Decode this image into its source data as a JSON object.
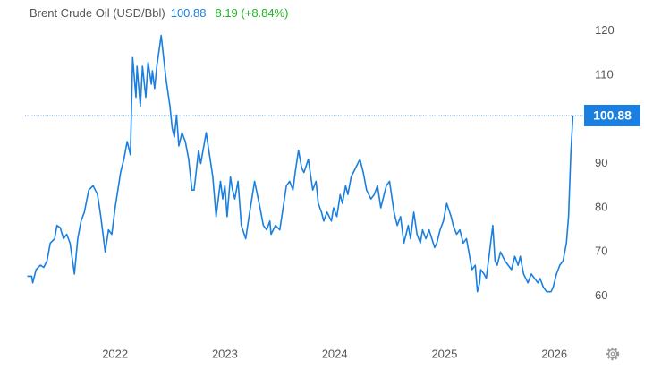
{
  "chart_data": {
    "type": "line",
    "title": "Brent Crude Oil (USD/Bbl)",
    "last_price": 100.88,
    "change": "8.19 (+8.84%)",
    "x": [
      2021.2,
      2021.24,
      2021.25,
      2021.28,
      2021.32,
      2021.35,
      2021.38,
      2021.41,
      2021.45,
      2021.47,
      2021.5,
      2021.53,
      2021.56,
      2021.59,
      2021.63,
      2021.66,
      2021.69,
      2021.72,
      2021.76,
      2021.8,
      2021.84,
      2021.87,
      2021.91,
      2021.94,
      2021.97,
      2022.0,
      2022.05,
      2022.08,
      2022.11,
      2022.14,
      2022.16,
      2022.19,
      2022.2,
      2022.23,
      2022.25,
      2022.28,
      2022.3,
      2022.33,
      2022.34,
      2022.36,
      2022.38,
      2022.42,
      2022.46,
      2022.47,
      2022.5,
      2022.52,
      2022.54,
      2022.56,
      2022.58,
      2022.61,
      2022.64,
      2022.67,
      2022.7,
      2022.72,
      2022.76,
      2022.78,
      2022.83,
      2022.86,
      2022.89,
      2022.92,
      2022.96,
      2022.98,
      2023.0,
      2023.02,
      2023.05,
      2023.07,
      2023.09,
      2023.12,
      2023.15,
      2023.19,
      2023.22,
      2023.27,
      2023.32,
      2023.35,
      2023.38,
      2023.41,
      2023.42,
      2023.46,
      2023.5,
      2023.53,
      2023.56,
      2023.59,
      2023.62,
      2023.64,
      2023.67,
      2023.7,
      2023.72,
      2023.76,
      2023.8,
      2023.83,
      2023.85,
      2023.88,
      2023.9,
      2023.93,
      2023.97,
      2023.99,
      2024.02,
      2024.05,
      2024.07,
      2024.1,
      2024.12,
      2024.15,
      2024.19,
      2024.23,
      2024.26,
      2024.29,
      2024.33,
      2024.36,
      2024.39,
      2024.42,
      2024.47,
      2024.5,
      2024.54,
      2024.57,
      2024.6,
      2024.63,
      2024.67,
      2024.69,
      2024.72,
      2024.75,
      2024.78,
      2024.8,
      2024.83,
      2024.86,
      2024.91,
      2024.93,
      2024.96,
      2024.99,
      2025.02,
      2025.06,
      2025.08,
      2025.11,
      2025.14,
      2025.17,
      2025.2,
      2025.25,
      2025.28,
      2025.3,
      2025.32,
      2025.33,
      2025.36,
      2025.38,
      2025.41,
      2025.44,
      2025.46,
      2025.48,
      2025.5,
      2025.51,
      2025.55,
      2025.58,
      2025.61,
      2025.64,
      2025.67,
      2025.69,
      2025.72,
      2025.76,
      2025.79,
      2025.82,
      2025.85,
      2025.87,
      2025.9,
      2025.93,
      2025.97,
      2025.99,
      2026.02,
      2026.05,
      2026.08,
      2026.11,
      2026.13,
      2026.15,
      2026.17
    ],
    "series": [
      {
        "name": "Brent Crude Oil",
        "color": "#1a7fe0",
        "values": [
          64.5,
          64.5,
          63,
          66,
          67,
          66.5,
          68,
          72,
          73,
          76,
          75.5,
          73,
          74,
          72,
          65,
          73,
          77,
          79,
          84,
          85,
          83,
          78,
          70,
          75,
          74,
          80,
          88,
          91,
          95,
          92,
          114,
          105,
          112,
          103,
          112,
          105,
          113,
          108,
          111,
          107,
          112,
          119,
          110,
          108,
          103,
          98,
          96,
          101,
          94,
          97,
          95,
          91,
          84,
          84,
          93,
          90,
          97,
          92,
          87,
          78,
          86,
          82,
          85,
          78,
          87,
          84,
          82,
          86,
          76,
          73,
          78,
          86,
          80,
          76,
          75,
          77,
          74,
          76,
          75,
          80,
          85,
          86,
          84,
          88,
          93,
          89,
          88,
          91,
          84,
          86,
          81,
          79,
          77,
          79,
          77,
          80,
          78,
          83,
          81,
          85,
          83,
          87,
          89,
          91,
          88,
          84,
          82,
          83,
          85,
          80,
          85,
          86,
          79,
          76,
          78,
          72,
          76,
          73,
          79,
          74,
          72,
          75,
          73,
          75,
          71,
          72,
          75,
          77,
          81,
          78,
          76,
          74,
          75,
          72,
          73,
          66,
          67,
          61,
          63,
          66,
          65,
          64,
          70,
          76,
          68,
          67,
          69,
          70,
          68,
          67,
          66,
          69,
          67,
          69,
          65,
          63,
          65,
          64,
          63,
          64,
          62,
          61,
          61,
          62,
          65,
          67,
          68,
          72,
          78,
          92,
          100.88
        ]
      }
    ],
    "xlim": [
      2021.18,
      2026.19
    ],
    "xticks": [
      2022,
      2023,
      2024,
      2025,
      2026
    ],
    "ylim": [
      51,
      125
    ],
    "yticks": [
      60,
      70,
      80,
      90,
      110,
      120
    ],
    "grid": false
  }
}
